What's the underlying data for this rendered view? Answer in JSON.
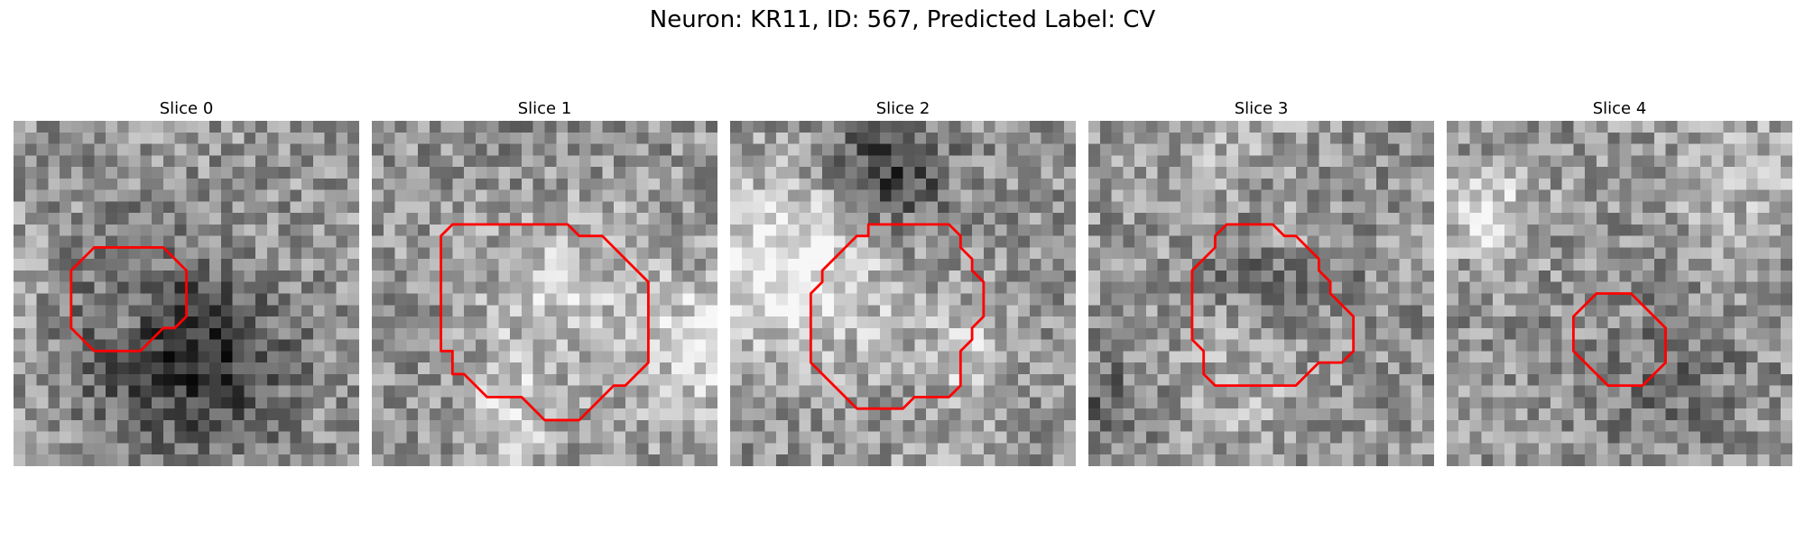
{
  "figure": {
    "title": "Neuron: KR11, ID: 567, Predicted Label: CV"
  },
  "panels": [
    {
      "title": "Slice 0",
      "outline": [
        [
          7,
          11
        ],
        [
          9,
          11
        ],
        [
          11,
          11
        ],
        [
          13,
          11
        ],
        [
          14,
          12
        ],
        [
          15,
          13
        ],
        [
          15,
          14
        ],
        [
          15,
          15
        ],
        [
          15,
          16
        ],
        [
          15,
          17
        ],
        [
          14,
          18
        ],
        [
          13,
          18
        ],
        [
          12,
          19
        ],
        [
          11,
          20
        ],
        [
          9,
          20
        ],
        [
          7,
          20
        ],
        [
          6,
          19
        ],
        [
          5,
          18
        ],
        [
          5,
          17
        ],
        [
          5,
          16
        ],
        [
          5,
          15
        ],
        [
          5,
          14
        ],
        [
          5,
          13
        ],
        [
          6,
          12
        ]
      ]
    },
    {
      "title": "Slice 1",
      "outline": [
        [
          9,
          9
        ],
        [
          11,
          9
        ],
        [
          14,
          9
        ],
        [
          17,
          9
        ],
        [
          18,
          10
        ],
        [
          20,
          10
        ],
        [
          21,
          11
        ],
        [
          22,
          12
        ],
        [
          23,
          13
        ],
        [
          24,
          14
        ],
        [
          24,
          15
        ],
        [
          24,
          16
        ],
        [
          24,
          17
        ],
        [
          24,
          18
        ],
        [
          24,
          19
        ],
        [
          24,
          20
        ],
        [
          24,
          21
        ],
        [
          23,
          22
        ],
        [
          22,
          23
        ],
        [
          21,
          23
        ],
        [
          20,
          24
        ],
        [
          19,
          25
        ],
        [
          18,
          26
        ],
        [
          16,
          26
        ],
        [
          15,
          26
        ],
        [
          14,
          25
        ],
        [
          13,
          24
        ],
        [
          11,
          24
        ],
        [
          10,
          24
        ],
        [
          9,
          23
        ],
        [
          8,
          22
        ],
        [
          7,
          22
        ],
        [
          7,
          21
        ],
        [
          7,
          20
        ],
        [
          6,
          20
        ],
        [
          6,
          19
        ],
        [
          6,
          17
        ],
        [
          6,
          15
        ],
        [
          6,
          13
        ],
        [
          6,
          11
        ],
        [
          6,
          10
        ],
        [
          7,
          9
        ],
        [
          8,
          9
        ]
      ]
    },
    {
      "title": "Slice 2",
      "outline": [
        [
          12,
          9
        ],
        [
          14,
          9
        ],
        [
          16,
          9
        ],
        [
          18,
          9
        ],
        [
          19,
          9
        ],
        [
          20,
          10
        ],
        [
          20,
          11
        ],
        [
          21,
          12
        ],
        [
          21,
          13
        ],
        [
          22,
          14
        ],
        [
          22,
          15
        ],
        [
          22,
          16
        ],
        [
          22,
          17
        ],
        [
          21,
          18
        ],
        [
          21,
          19
        ],
        [
          20,
          20
        ],
        [
          20,
          21
        ],
        [
          20,
          22
        ],
        [
          20,
          23
        ],
        [
          19,
          24
        ],
        [
          17,
          24
        ],
        [
          16,
          24
        ],
        [
          15,
          25
        ],
        [
          14,
          25
        ],
        [
          13,
          25
        ],
        [
          11,
          25
        ],
        [
          10,
          24
        ],
        [
          9,
          23
        ],
        [
          8,
          22
        ],
        [
          7,
          21
        ],
        [
          7,
          19
        ],
        [
          7,
          17
        ],
        [
          7,
          15
        ],
        [
          8,
          14
        ],
        [
          8,
          13
        ],
        [
          9,
          12
        ],
        [
          10,
          11
        ],
        [
          11,
          10
        ],
        [
          12,
          10
        ]
      ]
    },
    {
      "title": "Slice 3",
      "outline": [
        [
          12,
          9
        ],
        [
          13,
          9
        ],
        [
          14,
          9
        ],
        [
          16,
          9
        ],
        [
          17,
          10
        ],
        [
          18,
          10
        ],
        [
          19,
          11
        ],
        [
          20,
          12
        ],
        [
          20,
          13
        ],
        [
          21,
          14
        ],
        [
          21,
          15
        ],
        [
          22,
          16
        ],
        [
          23,
          17
        ],
        [
          23,
          18
        ],
        [
          23,
          19
        ],
        [
          23,
          20
        ],
        [
          22,
          21
        ],
        [
          21,
          21
        ],
        [
          20,
          21
        ],
        [
          19,
          22
        ],
        [
          18,
          23
        ],
        [
          16,
          23
        ],
        [
          14,
          23
        ],
        [
          12,
          23
        ],
        [
          11,
          23
        ],
        [
          10,
          22
        ],
        [
          10,
          21
        ],
        [
          10,
          20
        ],
        [
          9,
          19
        ],
        [
          9,
          18
        ],
        [
          9,
          16
        ],
        [
          9,
          14
        ],
        [
          9,
          13
        ],
        [
          10,
          12
        ],
        [
          11,
          11
        ],
        [
          11,
          10
        ]
      ]
    },
    {
      "title": "Slice 4",
      "outline": [
        [
          13,
          15
        ],
        [
          14,
          15
        ],
        [
          15,
          15
        ],
        [
          16,
          15
        ],
        [
          17,
          16
        ],
        [
          18,
          17
        ],
        [
          19,
          18
        ],
        [
          19,
          19
        ],
        [
          19,
          20
        ],
        [
          19,
          21
        ],
        [
          18,
          22
        ],
        [
          17,
          23
        ],
        [
          16,
          23
        ],
        [
          15,
          23
        ],
        [
          14,
          23
        ],
        [
          13,
          22
        ],
        [
          12,
          21
        ],
        [
          11,
          20
        ],
        [
          11,
          19
        ],
        [
          11,
          18
        ],
        [
          11,
          17
        ],
        [
          12,
          16
        ]
      ]
    }
  ]
}
